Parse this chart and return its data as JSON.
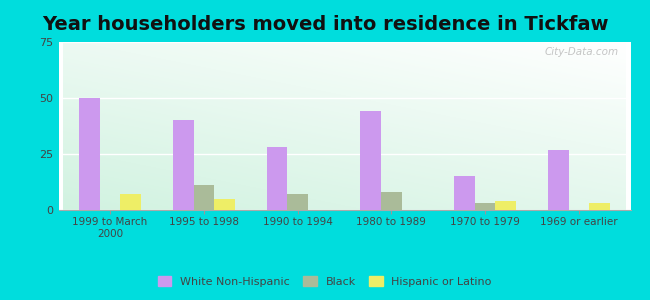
{
  "title": "Year householders moved into residence in Tickfaw",
  "categories": [
    "1999 to March\n2000",
    "1995 to 1998",
    "1990 to 1994",
    "1980 to 1989",
    "1970 to 1979",
    "1969 or earlier"
  ],
  "white": [
    50,
    40,
    28,
    44,
    15,
    27
  ],
  "black": [
    0,
    11,
    7,
    8,
    3,
    0
  ],
  "hispanic": [
    7,
    5,
    0,
    0,
    4,
    3
  ],
  "white_color": "#cc99ee",
  "black_color": "#aabb99",
  "hispanic_color": "#eeee66",
  "background_outer": "#00dddd",
  "grad_top": "#e8f5f0",
  "grad_bottom": "#c8e8d8",
  "ylim": [
    0,
    75
  ],
  "yticks": [
    0,
    25,
    50,
    75
  ],
  "bar_width": 0.22,
  "title_fontsize": 14,
  "legend_labels": [
    "White Non-Hispanic",
    "Black",
    "Hispanic or Latino"
  ]
}
